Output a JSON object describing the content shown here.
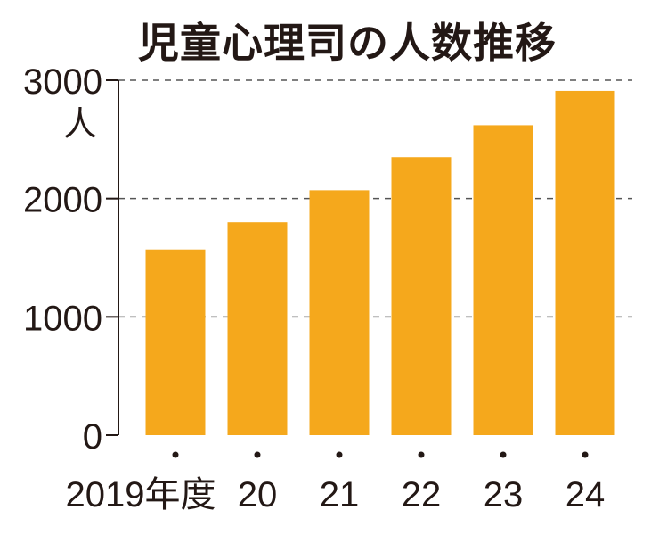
{
  "chart_data": {
    "type": "bar",
    "title": "児童心理司の人数推移",
    "unit_label": "人",
    "categories": [
      "2019年度",
      "20",
      "21",
      "22",
      "23",
      "24"
    ],
    "values": [
      1570,
      1800,
      2070,
      2350,
      2620,
      2910
    ],
    "ylim": [
      0,
      3000
    ],
    "yticks": [
      0,
      1000,
      2000,
      3000
    ],
    "grid": true,
    "bar_color": "#f5a81c",
    "axis_color": "#231815"
  }
}
